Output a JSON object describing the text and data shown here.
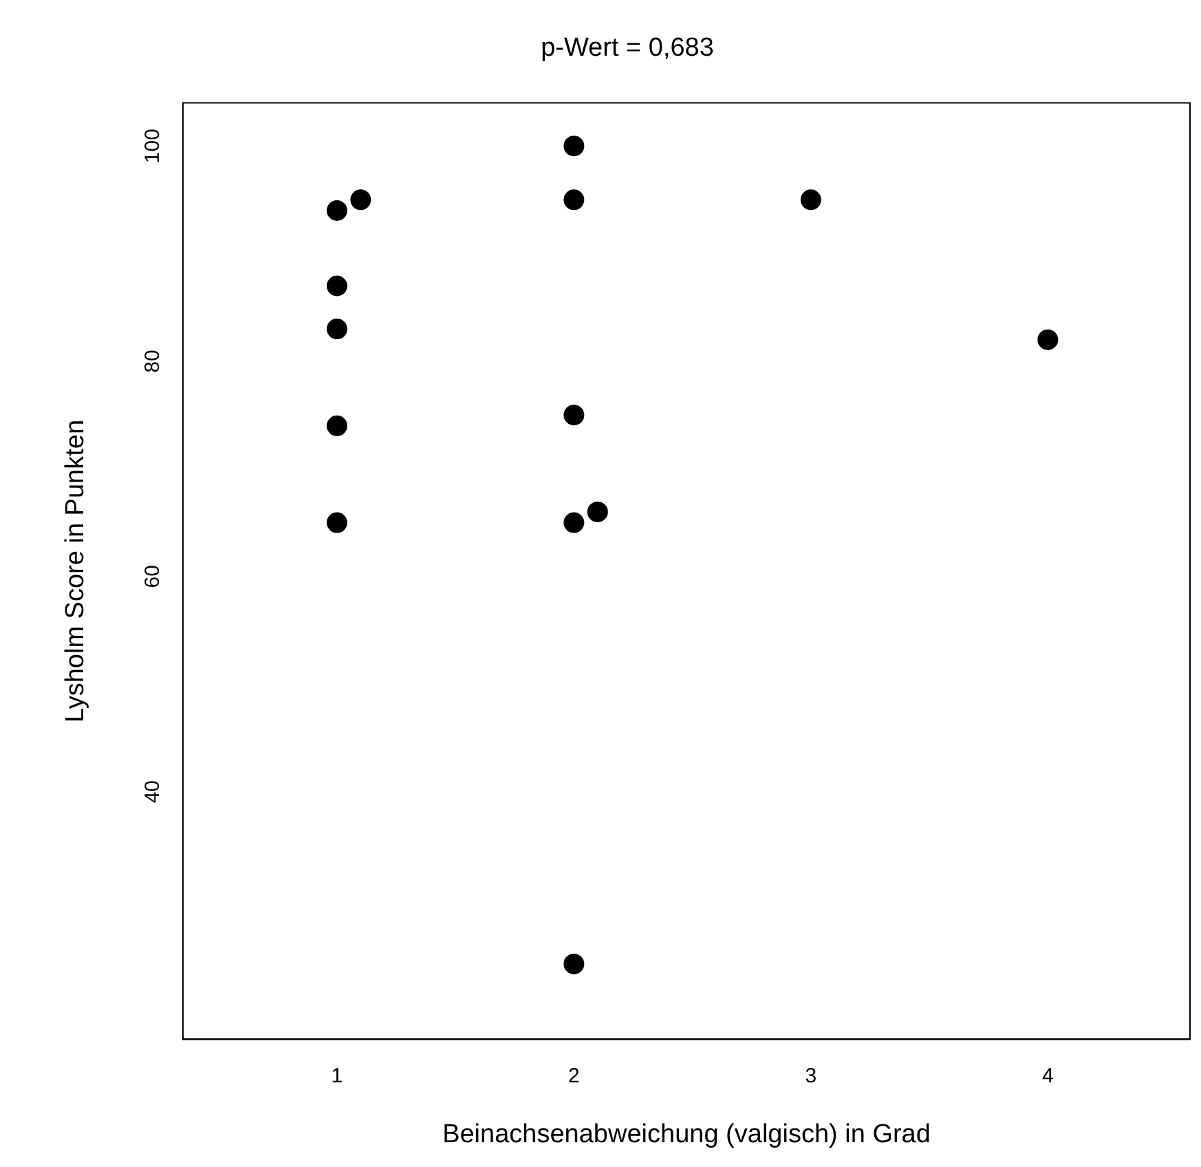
{
  "chart_data": {
    "type": "scatter",
    "title": "p-Wert = 0,683",
    "xlabel": "Beinachsenabweichung (valgisch) in Grad",
    "ylabel": "Lysholm Score in Punkten",
    "x": [
      1,
      1,
      1,
      1,
      1,
      1.1,
      2,
      2,
      2,
      2,
      2,
      2.1,
      3,
      4
    ],
    "values": [
      94,
      87,
      83,
      74,
      65,
      95,
      100,
      95,
      75,
      65,
      24,
      66,
      95,
      82
    ],
    "color": "#000000",
    "marker": "circle",
    "xlim": [
      0.35,
      4.6
    ],
    "xticks": [
      1,
      2,
      3,
      4
    ],
    "ylim": [
      17,
      104
    ],
    "yticks": [
      40,
      60,
      80,
      100
    ],
    "grid": false,
    "legend": false
  }
}
